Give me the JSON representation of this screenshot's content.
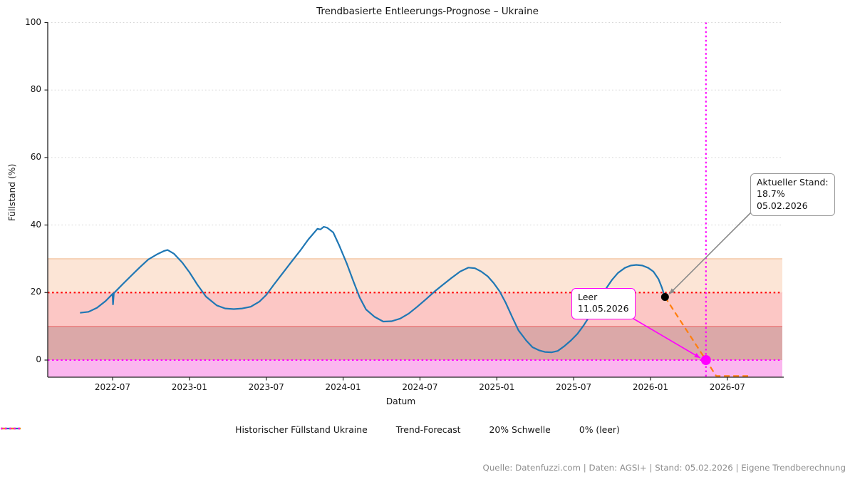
{
  "footer": "Quelle: Datenfuzzi.com | Daten: AGSI+ | Stand: 05.02.2026 | Eigene Trendberechnung",
  "chart_data": {
    "type": "line",
    "title": "Trendbasierte Entleerungs-Prognose – Ukraine",
    "xlabel": "Datum",
    "ylabel": "Füllstand (%)",
    "ylim": [
      -5,
      100
    ],
    "yticks": [
      0,
      20,
      40,
      60,
      80,
      100
    ],
    "xticks": [
      "2022-07",
      "2023-01",
      "2023-07",
      "2024-01",
      "2024-07",
      "2025-01",
      "2025-07",
      "2026-01",
      "2026-07"
    ],
    "grid": "horizontal dotted at 40/60/80/100, light gray",
    "legend_position": "bottom-center, frameless",
    "series": [
      {
        "name": "Historischer Füllstand Ukraine",
        "color": "#1f77b4",
        "style": "solid",
        "points": [
          [
            "2022-04-15",
            14.0
          ],
          [
            "2022-05-05",
            14.3
          ],
          [
            "2022-05-25",
            15.5
          ],
          [
            "2022-06-15",
            17.5
          ],
          [
            "2022-07-01",
            19.6
          ],
          [
            "2022-07-02",
            16.5
          ],
          [
            "2022-07-04",
            19.8
          ],
          [
            "2022-07-25",
            22.5
          ],
          [
            "2022-08-15",
            25.0
          ],
          [
            "2022-09-05",
            27.5
          ],
          [
            "2022-09-25",
            29.8
          ],
          [
            "2022-10-15",
            31.3
          ],
          [
            "2022-11-01",
            32.3
          ],
          [
            "2022-11-10",
            32.6
          ],
          [
            "2022-11-25",
            31.5
          ],
          [
            "2022-12-15",
            28.8
          ],
          [
            "2023-01-01",
            26.0
          ],
          [
            "2023-01-20",
            22.3
          ],
          [
            "2023-02-10",
            18.8
          ],
          [
            "2023-03-05",
            16.2
          ],
          [
            "2023-03-25",
            15.3
          ],
          [
            "2023-04-15",
            15.1
          ],
          [
            "2023-05-05",
            15.3
          ],
          [
            "2023-05-25",
            15.8
          ],
          [
            "2023-06-15",
            17.3
          ],
          [
            "2023-07-01",
            19.3
          ],
          [
            "2023-07-20",
            22.5
          ],
          [
            "2023-08-10",
            25.8
          ],
          [
            "2023-09-01",
            29.3
          ],
          [
            "2023-09-20",
            32.3
          ],
          [
            "2023-10-10",
            35.8
          ],
          [
            "2023-10-22",
            37.5
          ],
          [
            "2023-11-01",
            38.9
          ],
          [
            "2023-11-08",
            38.7
          ],
          [
            "2023-11-16",
            39.5
          ],
          [
            "2023-11-24",
            39.2
          ],
          [
            "2023-12-08",
            37.8
          ],
          [
            "2023-12-22",
            34.0
          ],
          [
            "2024-01-10",
            28.5
          ],
          [
            "2024-01-25",
            23.5
          ],
          [
            "2024-02-10",
            18.5
          ],
          [
            "2024-02-25",
            15.0
          ],
          [
            "2024-03-15",
            12.8
          ],
          [
            "2024-04-05",
            11.4
          ],
          [
            "2024-04-25",
            11.5
          ],
          [
            "2024-05-15",
            12.3
          ],
          [
            "2024-06-05",
            13.8
          ],
          [
            "2024-06-25",
            15.8
          ],
          [
            "2024-07-15",
            18.0
          ],
          [
            "2024-08-05",
            20.3
          ],
          [
            "2024-08-25",
            22.3
          ],
          [
            "2024-09-15",
            24.3
          ],
          [
            "2024-10-05",
            26.2
          ],
          [
            "2024-10-25",
            27.4
          ],
          [
            "2024-11-10",
            27.2
          ],
          [
            "2024-11-25",
            26.2
          ],
          [
            "2024-12-10",
            24.8
          ],
          [
            "2024-12-24",
            22.8
          ],
          [
            "2025-01-08",
            20.3
          ],
          [
            "2025-01-22",
            17.0
          ],
          [
            "2025-02-08",
            12.5
          ],
          [
            "2025-02-22",
            8.8
          ],
          [
            "2025-03-10",
            5.8
          ],
          [
            "2025-03-25",
            3.8
          ],
          [
            "2025-04-10",
            2.9
          ],
          [
            "2025-04-24",
            2.4
          ],
          [
            "2025-05-10",
            2.3
          ],
          [
            "2025-05-24",
            2.7
          ],
          [
            "2025-06-10",
            4.2
          ],
          [
            "2025-06-25",
            5.8
          ],
          [
            "2025-07-10",
            7.8
          ],
          [
            "2025-07-25",
            10.3
          ],
          [
            "2025-08-10",
            13.3
          ],
          [
            "2025-08-28",
            17.0
          ],
          [
            "2025-09-15",
            20.8
          ],
          [
            "2025-10-01",
            23.8
          ],
          [
            "2025-10-15",
            25.8
          ],
          [
            "2025-11-01",
            27.3
          ],
          [
            "2025-11-15",
            28.0
          ],
          [
            "2025-11-28",
            28.2
          ],
          [
            "2025-12-12",
            28.0
          ],
          [
            "2025-12-26",
            27.3
          ],
          [
            "2026-01-08",
            26.2
          ],
          [
            "2026-01-20",
            24.0
          ],
          [
            "2026-01-28",
            21.5
          ],
          [
            "2026-02-05",
            18.7
          ]
        ]
      },
      {
        "name": "Trend-Forecast",
        "color": "#ff7f0e",
        "style": "dashed",
        "points": [
          [
            "2026-02-05",
            18.7
          ],
          [
            "2026-05-11",
            0.0
          ],
          [
            "2026-06-05",
            -4.7
          ],
          [
            "2026-08-20",
            -4.7
          ]
        ]
      }
    ],
    "reference_lines": [
      {
        "name": "20% Schwelle",
        "orientation": "horizontal",
        "y": 20,
        "color": "#ff0000",
        "style": "dotted"
      },
      {
        "name": "0% (leer)",
        "orientation": "horizontal",
        "y": 0,
        "color": "#ff00ff",
        "style": "dotted"
      },
      {
        "name": "Leer-Datum",
        "orientation": "vertical",
        "x": "2026-05-11",
        "color": "#ff00ff",
        "style": "dotted"
      }
    ],
    "bands": [
      {
        "from": 20,
        "to": 30,
        "color": "#fce5d6",
        "edge_top": "#f4c6a4"
      },
      {
        "from": 10,
        "to": 20,
        "color": "#fcc7c5",
        "edge_top": null
      },
      {
        "from": 0,
        "to": 10,
        "color": "#dba8a8",
        "edge_top": "#ee7f7f"
      },
      {
        "from": -5,
        "to": 0,
        "color": "#fbb6ef",
        "edge_top": null
      }
    ],
    "markers": [
      {
        "name": "aktueller-stand-punkt",
        "x": "2026-02-05",
        "y": 18.7,
        "color": "#000000",
        "r": 5.5
      },
      {
        "name": "leer-punkt",
        "x": "2026-05-11",
        "y": 0,
        "color": "#ff00ff",
        "r": 7
      }
    ],
    "annotations": [
      {
        "name": "aktueller-stand",
        "lines": [
          "Aktueller Stand:",
          "18.7%",
          "05.02.2026"
        ],
        "border_color": "#9a9a9a",
        "arrow_color": "#8a8a8a",
        "target": {
          "x": "2026-02-05",
          "y": 18.7
        }
      },
      {
        "name": "leer",
        "lines": [
          "Leer",
          "11.05.2026"
        ],
        "border_color": "#ff00ff",
        "arrow_color": "#ff00ff",
        "target": {
          "x": "2026-05-11",
          "y": 0
        }
      }
    ],
    "legend": [
      {
        "label": "Historischer Füllstand Ukraine",
        "color": "#1f77b4",
        "style": "solid"
      },
      {
        "label": "Trend-Forecast",
        "color": "#ff7f0e",
        "style": "dashed"
      },
      {
        "label": "20% Schwelle",
        "color": "#ff0000",
        "style": "dotted"
      },
      {
        "label": "0% (leer)",
        "color": "#ff00ff",
        "style": "dotted"
      }
    ]
  }
}
